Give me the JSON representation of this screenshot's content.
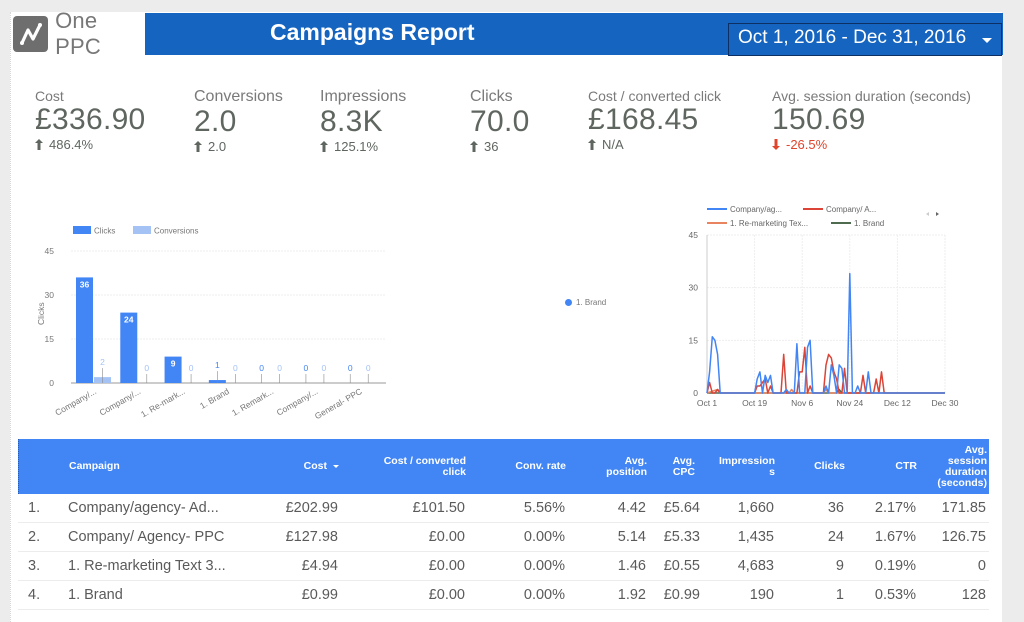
{
  "header": {
    "logo_text": "One PPC",
    "title": "Campaigns Report",
    "date_range": "Oct 1, 2016 - Dec 31, 2016"
  },
  "colors": {
    "title_bar": "#1565c0",
    "table_header": "#4285f4",
    "positive": "#5f6660",
    "negative": "#e0442a",
    "series_blue": "#4285f4",
    "series_red": "#db4437",
    "series_light_blue": "#a4c2f4"
  },
  "scorecards": [
    {
      "label": "Cost",
      "value": "£336.90",
      "delta": "486.4%",
      "direction": "up"
    },
    {
      "label": "Conversions",
      "value": "2.0",
      "delta": "2.0",
      "direction": "up"
    },
    {
      "label": "Impressions",
      "value": "8.3K",
      "delta": "125.1%",
      "direction": "up"
    },
    {
      "label": "Clicks",
      "value": "70.0",
      "delta": "36",
      "direction": "up"
    },
    {
      "label": "Cost / converted click",
      "value": "£168.45",
      "delta": "N/A",
      "direction": "up"
    },
    {
      "label": "Avg. session duration (seconds)",
      "value": "150.69",
      "delta": "-26.5%",
      "direction": "down"
    }
  ],
  "pie_legend": {
    "label": "1. Brand"
  },
  "chart_data": [
    {
      "type": "bar",
      "title": "",
      "xlabel": "",
      "ylabel": "Clicks",
      "ylim": [
        0,
        45
      ],
      "yticks": [
        0,
        15,
        30,
        45
      ],
      "grid": true,
      "legend": "top-left",
      "categories": [
        "Company/...",
        "Company/...",
        "1. Re-mark...",
        "1. Brand",
        "1. Remark...",
        "Company/...",
        "General- PPC"
      ],
      "series": [
        {
          "name": "Clicks",
          "color": "#4285f4",
          "values": [
            36,
            24,
            9,
            1,
            0,
            0,
            0
          ]
        },
        {
          "name": "Conversions",
          "color": "#a4c2f4",
          "values": [
            2,
            0,
            0,
            0,
            0,
            0,
            0
          ]
        }
      ]
    },
    {
      "type": "line",
      "title": "",
      "xlabel": "",
      "ylabel": "",
      "ylim": [
        0,
        45
      ],
      "yticks": [
        0,
        15,
        30,
        45
      ],
      "x_tick_labels": [
        "Oct 1",
        "Oct 19",
        "Nov 6",
        "Nov 24",
        "Dec 12",
        "Dec 30"
      ],
      "x_range_days": [
        0,
        90
      ],
      "grid": true,
      "legend": "top",
      "series": [
        {
          "name": "Company/ag...",
          "color": "#4285f4",
          "points": [
            [
              0,
              0
            ],
            [
              1,
              6
            ],
            [
              2,
              16
            ],
            [
              3,
              15
            ],
            [
              4,
              11
            ],
            [
              5,
              0
            ],
            [
              6,
              0
            ],
            [
              18,
              0
            ],
            [
              19,
              4
            ],
            [
              20,
              6
            ],
            [
              21,
              0
            ],
            [
              22,
              5
            ],
            [
              23,
              3
            ],
            [
              24,
              5
            ],
            [
              25,
              0
            ],
            [
              26,
              0
            ],
            [
              29,
              0
            ],
            [
              30,
              1
            ],
            [
              31,
              0
            ],
            [
              33,
              0
            ],
            [
              34,
              14
            ],
            [
              35,
              0
            ],
            [
              37,
              0
            ],
            [
              38,
              13
            ],
            [
              39,
              15
            ],
            [
              40,
              0
            ],
            [
              44,
              0
            ],
            [
              45,
              2
            ],
            [
              46,
              0
            ],
            [
              47,
              8
            ],
            [
              48,
              5
            ],
            [
              49,
              0
            ],
            [
              50,
              8
            ],
            [
              51,
              7
            ],
            [
              52,
              0
            ],
            [
              53,
              0
            ],
            [
              54,
              34
            ],
            [
              55,
              0
            ],
            [
              56,
              0
            ],
            [
              57,
              2
            ],
            [
              58,
              0
            ],
            [
              60,
              0
            ],
            [
              61,
              6
            ],
            [
              62,
              0
            ],
            [
              68,
              0
            ],
            [
              90,
              0
            ]
          ]
        },
        {
          "name": "Company/ A...",
          "color": "#db4437",
          "points": [
            [
              0,
              0
            ],
            [
              1,
              3
            ],
            [
              2,
              0
            ],
            [
              3,
              0
            ],
            [
              4,
              1
            ],
            [
              5,
              0
            ],
            [
              18,
              0
            ],
            [
              19,
              2
            ],
            [
              20,
              2
            ],
            [
              21,
              3
            ],
            [
              22,
              4
            ],
            [
              23,
              0
            ],
            [
              24,
              2
            ],
            [
              25,
              0
            ],
            [
              28,
              0
            ],
            [
              29,
              11
            ],
            [
              30,
              0
            ],
            [
              34,
              0
            ],
            [
              35,
              6
            ],
            [
              36,
              6
            ],
            [
              37,
              13
            ],
            [
              38,
              0
            ],
            [
              39,
              2
            ],
            [
              40,
              0
            ],
            [
              44,
              0
            ],
            [
              45,
              8
            ],
            [
              46,
              11
            ],
            [
              47,
              10
            ],
            [
              48,
              6
            ],
            [
              49,
              4
            ],
            [
              50,
              0
            ],
            [
              51,
              0
            ],
            [
              52,
              7
            ],
            [
              53,
              0
            ],
            [
              58,
              0
            ],
            [
              59,
              5
            ],
            [
              60,
              0
            ],
            [
              63,
              0
            ],
            [
              64,
              4
            ],
            [
              65,
              0
            ],
            [
              66,
              6
            ],
            [
              67,
              0
            ],
            [
              90,
              0
            ]
          ]
        },
        {
          "name": "1. Re-marketing Tex...",
          "color": "#e8845f",
          "points": [
            [
              0,
              0
            ],
            [
              4,
              1
            ],
            [
              5,
              0
            ],
            [
              31,
              0
            ],
            [
              32,
              1
            ],
            [
              33,
              0
            ],
            [
              44,
              0
            ],
            [
              45,
              1
            ],
            [
              46,
              0
            ],
            [
              90,
              0
            ]
          ]
        },
        {
          "name": "1. Brand",
          "color": "#4f6b4f",
          "points": [
            [
              0,
              0
            ],
            [
              49,
              0
            ],
            [
              50,
              1
            ],
            [
              51,
              0
            ],
            [
              90,
              0
            ]
          ]
        }
      ]
    }
  ],
  "table": {
    "columns": [
      {
        "label": "#"
      },
      {
        "label": "Campaign"
      },
      {
        "label": "Cost",
        "sorted": "desc"
      },
      {
        "label": "Cost / converted click"
      },
      {
        "label": "Conv. rate"
      },
      {
        "label": "Avg. position"
      },
      {
        "label": "Avg. CPC"
      },
      {
        "label": "Impressions"
      },
      {
        "label": "Clicks"
      },
      {
        "label": "CTR"
      },
      {
        "label": "Avg. session duration (seconds)"
      }
    ],
    "header_labels": {
      "campaign": "Campaign",
      "cost": "Cost",
      "cost_conv_1": "Cost / converted",
      "cost_conv_2": "click",
      "conv_rate": "Conv. rate",
      "avg_pos_1": "Avg.",
      "avg_pos_2": "position",
      "avg_cpc_1": "Avg.",
      "avg_cpc_2": "CPC",
      "impr_1": "Impression",
      "impr_2": "s",
      "clicks": "Clicks",
      "ctr": "CTR",
      "dur_1": "Avg.",
      "dur_2": "session",
      "dur_3": "duration",
      "dur_4": "(seconds)"
    },
    "rows": [
      {
        "idx": "1.",
        "campaign": "Company/agency- Ad...",
        "cost": "£202.99",
        "cost_conv": "£101.50",
        "conv_rate": "5.56%",
        "avg_pos": "4.42",
        "avg_cpc": "£5.64",
        "impressions": "1,660",
        "clicks": "36",
        "ctr": "2.17%",
        "duration": "171.85"
      },
      {
        "idx": "2.",
        "campaign": "Company/ Agency- PPC",
        "cost": "£127.98",
        "cost_conv": "£0.00",
        "conv_rate": "0.00%",
        "avg_pos": "5.14",
        "avg_cpc": "£5.33",
        "impressions": "1,435",
        "clicks": "24",
        "ctr": "1.67%",
        "duration": "126.75"
      },
      {
        "idx": "3.",
        "campaign": "1. Re-marketing Text 3...",
        "cost": "£4.94",
        "cost_conv": "£0.00",
        "conv_rate": "0.00%",
        "avg_pos": "1.46",
        "avg_cpc": "£0.55",
        "impressions": "4,683",
        "clicks": "9",
        "ctr": "0.19%",
        "duration": "0"
      },
      {
        "idx": "4.",
        "campaign": "1. Brand",
        "cost": "£0.99",
        "cost_conv": "£0.00",
        "conv_rate": "0.00%",
        "avg_pos": "1.92",
        "avg_cpc": "£0.99",
        "impressions": "190",
        "clicks": "1",
        "ctr": "0.53%",
        "duration": "128"
      }
    ]
  }
}
